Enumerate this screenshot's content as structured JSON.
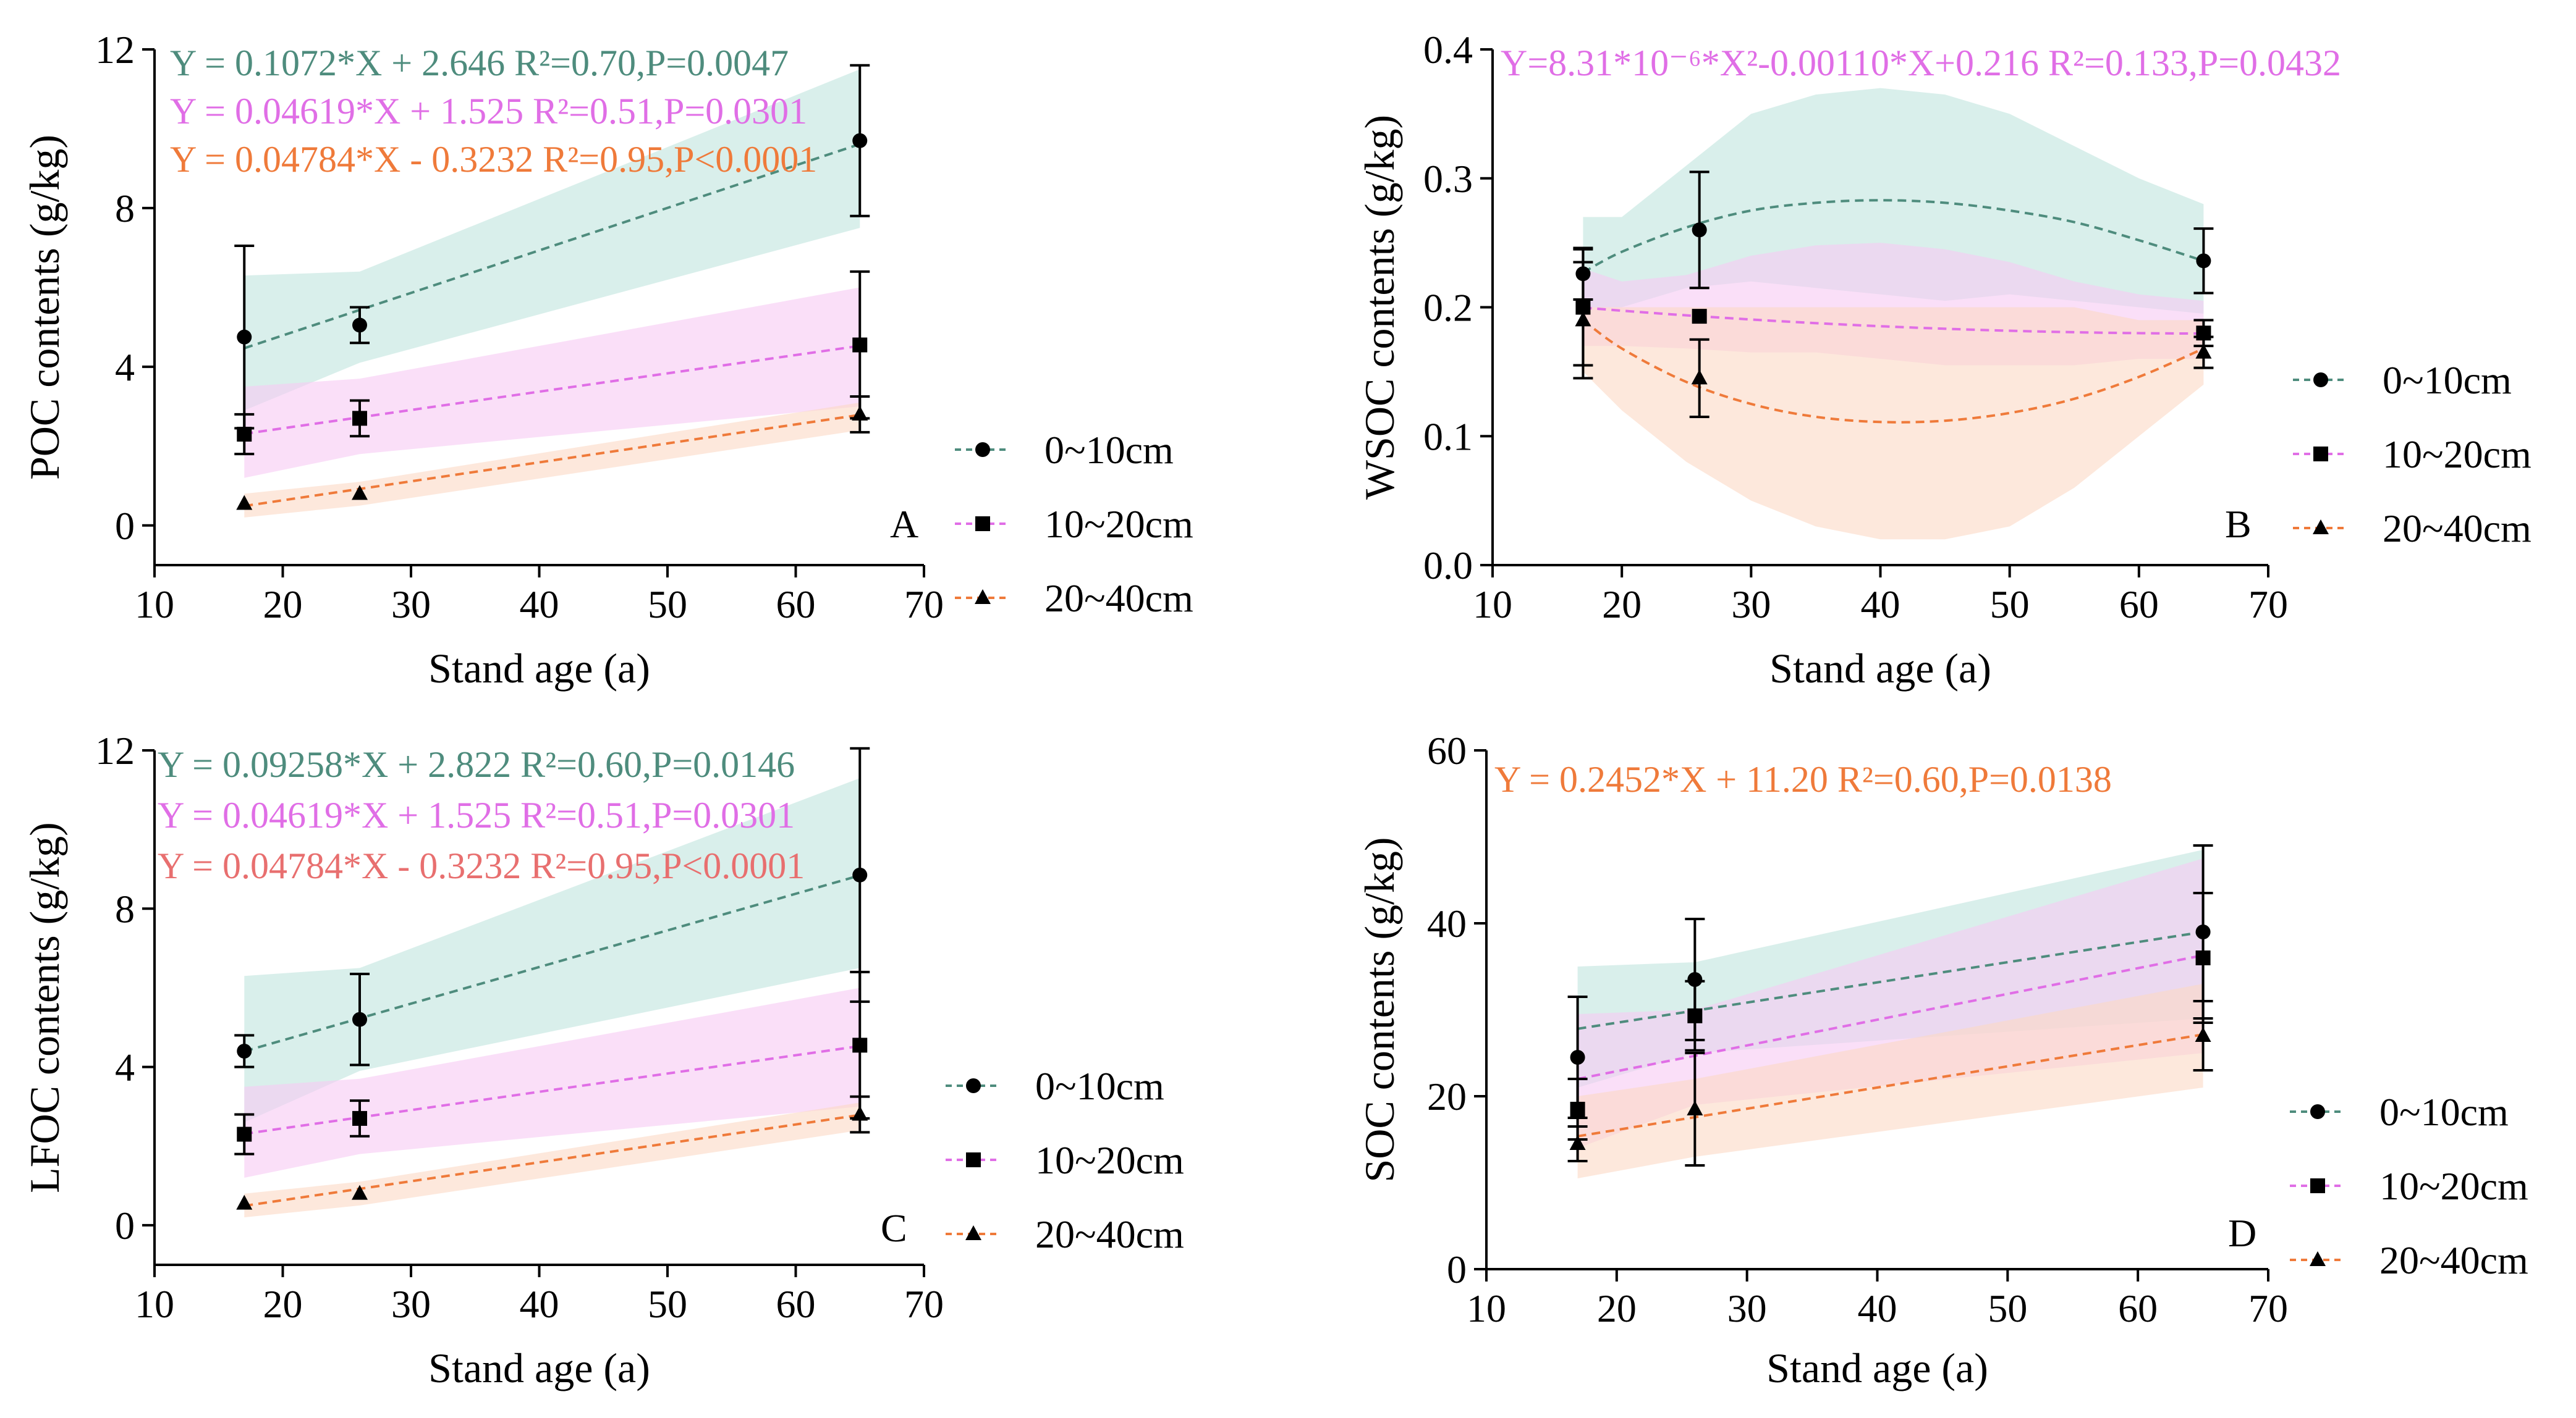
{
  "figure": {
    "colors": {
      "d0_10": "#4e8c7d",
      "d10_20": "#e06ee6",
      "d20_40": "#ef7a3a",
      "d20_40_alt": "#e86f6f",
      "band0_10": "#bfe4dd",
      "band10_20": "#f7c9f3",
      "band20_40": "#fbd9c4"
    }
  },
  "chart_data": [
    {
      "id": "A",
      "type": "line",
      "panel_label": "A",
      "xlabel": "Stand age (a)",
      "ylabel": "POC contents (g/kg)",
      "xlim": [
        10,
        70
      ],
      "ylim": [
        -1,
        12
      ],
      "xticks": [
        10,
        20,
        30,
        40,
        50,
        60,
        70
      ],
      "yticks": [
        0,
        4,
        8,
        12
      ],
      "legend": [
        "0~10cm",
        "10~20cm",
        "20~40cm"
      ],
      "equations": [
        {
          "series": "0~10cm",
          "text": "Y = 0.1072*X + 2.646 R²=0.70,P=0.0047"
        },
        {
          "series": "10~20cm",
          "text": "Y = 0.04619*X + 1.525 R²=0.51,P=0.0301"
        },
        {
          "series": "20~40cm",
          "text": "Y = 0.04784*X - 0.3232 R²=0.95,P<0.0001"
        }
      ],
      "series": [
        {
          "name": "0~10cm",
          "marker": "circle",
          "x": [
            17,
            26,
            65
          ],
          "y": [
            4.75,
            5.05,
            9.7
          ],
          "err": [
            2.3,
            0.45,
            1.9
          ],
          "fit": {
            "kind": "linear",
            "a": 0.1072,
            "b": 2.646
          },
          "band": {
            "x": [
              17,
              26,
              65
            ],
            "lo": [
              2.9,
              4.1,
              7.5
            ],
            "hi": [
              6.3,
              6.4,
              11.5
            ]
          }
        },
        {
          "name": "10~20cm",
          "marker": "square",
          "x": [
            17,
            26,
            65
          ],
          "y": [
            2.3,
            2.7,
            4.55
          ],
          "err": [
            0.5,
            0.45,
            1.85
          ],
          "fit": {
            "kind": "linear",
            "a": 0.04619,
            "b": 1.525
          },
          "band": {
            "x": [
              17,
              26,
              65
            ],
            "lo": [
              1.2,
              1.8,
              3.0
            ],
            "hi": [
              3.5,
              3.7,
              6.0
            ]
          }
        },
        {
          "name": "20~40cm",
          "marker": "triangle",
          "x": [
            17,
            26,
            65
          ],
          "y": [
            0.55,
            0.8,
            2.8
          ],
          "err": [
            0,
            0,
            0.45
          ],
          "fit": {
            "kind": "linear",
            "a": 0.04784,
            "b": -0.3232
          },
          "band": {
            "x": [
              17,
              26,
              65
            ],
            "lo": [
              0.2,
              0.5,
              2.4
            ],
            "hi": [
              0.8,
              1.1,
              3.1
            ]
          }
        }
      ]
    },
    {
      "id": "B",
      "type": "line",
      "panel_label": "B",
      "xlabel": "Stand age (a)",
      "ylabel": "WSOC contents (g/kg)",
      "xlim": [
        10,
        70
      ],
      "ylim": [
        0,
        0.4
      ],
      "xticks": [
        10,
        20,
        30,
        40,
        50,
        60,
        70
      ],
      "yticks": [
        0.0,
        0.1,
        0.2,
        0.3,
        0.4
      ],
      "legend": [
        "0~10cm",
        "10~20cm",
        "20~40cm"
      ],
      "equations": [
        {
          "series": "10~20cm",
          "text": "Y=8.31*10⁻⁶*X²-0.00110*X+0.216 R²=0.133,P=0.0432"
        }
      ],
      "series": [
        {
          "name": "0~10cm",
          "marker": "circle",
          "x": [
            17,
            26,
            65
          ],
          "y": [
            0.226,
            0.26,
            0.236
          ],
          "err": [
            0.02,
            0.045,
            0.025
          ],
          "fit": {
            "kind": "points",
            "x": [
              17,
              20,
              25,
              30,
              35,
              40,
              45,
              50,
              55,
              60,
              65
            ],
            "y": [
              0.227,
              0.243,
              0.262,
              0.275,
              0.281,
              0.283,
              0.281,
              0.275,
              0.266,
              0.252,
              0.236
            ]
          },
          "band": {
            "x": [
              17,
              20,
              25,
              30,
              35,
              40,
              45,
              50,
              55,
              60,
              65
            ],
            "lo": [
              0.2,
              0.2,
              0.215,
              0.22,
              0.215,
              0.21,
              0.205,
              0.21,
              0.205,
              0.2,
              0.195
            ],
            "hi": [
              0.27,
              0.27,
              0.31,
              0.35,
              0.365,
              0.37,
              0.365,
              0.35,
              0.325,
              0.3,
              0.28
            ]
          }
        },
        {
          "name": "10~20cm",
          "marker": "square",
          "x": [
            17,
            26,
            65
          ],
          "y": [
            0.2,
            0.193,
            0.18
          ],
          "err": [
            0.045,
            0,
            0.01
          ],
          "fit": {
            "kind": "quadratic",
            "a": 8.31e-06,
            "b": -0.0011,
            "c": 0.216
          },
          "band": {
            "x": [
              17,
              20,
              25,
              30,
              35,
              40,
              45,
              50,
              55,
              60,
              65
            ],
            "lo": [
              0.17,
              0.17,
              0.168,
              0.165,
              0.165,
              0.16,
              0.155,
              0.155,
              0.155,
              0.16,
              0.16
            ],
            "hi": [
              0.23,
              0.22,
              0.225,
              0.24,
              0.248,
              0.25,
              0.245,
              0.235,
              0.22,
              0.21,
              0.205
            ]
          }
        },
        {
          "name": "20~40cm",
          "marker": "triangle",
          "x": [
            17,
            26,
            65
          ],
          "y": [
            0.19,
            0.145,
            0.165
          ],
          "err": [
            0.045,
            0.03,
            0.012
          ],
          "fit": {
            "kind": "points",
            "x": [
              17,
              20,
              25,
              30,
              35,
              40,
              45,
              50,
              55,
              60,
              65
            ],
            "y": [
              0.19,
              0.168,
              0.142,
              0.125,
              0.115,
              0.111,
              0.112,
              0.118,
              0.129,
              0.146,
              0.168
            ]
          },
          "band": {
            "x": [
              17,
              20,
              25,
              30,
              35,
              40,
              45,
              50,
              55,
              60,
              65
            ],
            "lo": [
              0.15,
              0.12,
              0.08,
              0.05,
              0.03,
              0.02,
              0.02,
              0.03,
              0.06,
              0.1,
              0.14
            ],
            "hi": [
              0.2,
              0.2,
              0.2,
              0.2,
              0.2,
              0.2,
              0.2,
              0.2,
              0.2,
              0.19,
              0.19
            ]
          }
        }
      ]
    },
    {
      "id": "C",
      "type": "line",
      "panel_label": "C",
      "xlabel": "Stand age (a)",
      "ylabel": "LFOC contents (g/kg)",
      "xlim": [
        10,
        70
      ],
      "ylim": [
        -1,
        12
      ],
      "xticks": [
        10,
        20,
        30,
        40,
        50,
        60,
        70
      ],
      "yticks": [
        0,
        4,
        8,
        12
      ],
      "legend": [
        "0~10cm",
        "10~20cm",
        "20~40cm"
      ],
      "equations": [
        {
          "series": "0~10cm",
          "text": "Y = 0.09258*X + 2.822 R²=0.60,P=0.0146"
        },
        {
          "series": "10~20cm",
          "text": "Y = 0.04619*X + 1.525 R²=0.51,P=0.0301"
        },
        {
          "series": "20~40cm",
          "text": "Y = 0.04784*X - 0.3232 R²=0.95,P<0.0001"
        }
      ],
      "series": [
        {
          "name": "0~10cm",
          "marker": "circle",
          "x": [
            17,
            26,
            65
          ],
          "y": [
            4.4,
            5.2,
            8.85
          ],
          "err": [
            0.4,
            1.15,
            3.2
          ],
          "fit": {
            "kind": "linear",
            "a": 0.09258,
            "b": 2.822
          },
          "band": {
            "x": [
              17,
              26,
              65
            ],
            "lo": [
              2.6,
              3.9,
              6.5
            ],
            "hi": [
              6.3,
              6.5,
              11.3
            ]
          }
        },
        {
          "name": "10~20cm",
          "marker": "square",
          "x": [
            17,
            26,
            65
          ],
          "y": [
            2.3,
            2.7,
            4.55
          ],
          "err": [
            0.5,
            0.45,
            1.85
          ],
          "fit": {
            "kind": "linear",
            "a": 0.04619,
            "b": 1.525
          },
          "band": {
            "x": [
              17,
              26,
              65
            ],
            "lo": [
              1.2,
              1.8,
              3.0
            ],
            "hi": [
              3.5,
              3.7,
              6.0
            ]
          }
        },
        {
          "name": "20~40cm",
          "marker": "triangle",
          "x": [
            17,
            26,
            65
          ],
          "y": [
            0.55,
            0.8,
            2.8
          ],
          "err": [
            0,
            0,
            0.45
          ],
          "fit": {
            "kind": "linear",
            "a": 0.04784,
            "b": -0.3232
          },
          "band": {
            "x": [
              17,
              26,
              65
            ],
            "lo": [
              0.2,
              0.5,
              2.4
            ],
            "hi": [
              0.8,
              1.1,
              3.1
            ]
          }
        }
      ]
    },
    {
      "id": "D",
      "type": "line",
      "panel_label": "D",
      "xlabel": "Stand age (a)",
      "ylabel": "SOC contents (g/kg)",
      "xlim": [
        10,
        70
      ],
      "ylim": [
        0,
        60
      ],
      "xticks": [
        10,
        20,
        30,
        40,
        50,
        60,
        70
      ],
      "yticks": [
        0,
        20,
        40,
        60
      ],
      "legend": [
        "0~10cm",
        "10~20cm",
        "20~40cm"
      ],
      "equations": [
        {
          "series": "20~40cm",
          "text": "Y = 0.2452*X + 11.20 R²=0.60,P=0.0138"
        }
      ],
      "series": [
        {
          "name": "0~10cm",
          "marker": "circle",
          "x": [
            17,
            26,
            65
          ],
          "y": [
            24.5,
            33.5,
            39.0
          ],
          "err": [
            7,
            7,
            10
          ],
          "fit": {
            "kind": "points",
            "x": [
              17,
              65
            ],
            "y": [
              27.8,
              39.0
            ]
          },
          "band": {
            "x": [
              17,
              26,
              65
            ],
            "lo": [
              21,
              25,
              29
            ],
            "hi": [
              35,
              35.5,
              48.5
            ]
          }
        },
        {
          "name": "10~20cm",
          "marker": "square",
          "x": [
            17,
            26,
            65
          ],
          "y": [
            18.5,
            29.3,
            36.0
          ],
          "err": [
            3.5,
            4,
            7.5
          ],
          "fit": {
            "kind": "points",
            "x": [
              17,
              65
            ],
            "y": [
              22.0,
              36.3
            ]
          },
          "band": {
            "x": [
              17,
              26,
              65
            ],
            "lo": [
              14,
              19,
              25
            ],
            "hi": [
              29.5,
              30,
              47.5
            ]
          }
        },
        {
          "name": "20~40cm",
          "marker": "triangle",
          "x": [
            17,
            26,
            65
          ],
          "y": [
            14.5,
            18.5,
            27.0
          ],
          "err": [
            2,
            6.5,
            4
          ],
          "fit": {
            "kind": "linear",
            "a": 0.2452,
            "b": 11.2
          },
          "band": {
            "x": [
              17,
              26,
              65
            ],
            "lo": [
              10.5,
              13,
              21
            ],
            "hi": [
              20,
              22,
              33
            ]
          }
        }
      ]
    }
  ]
}
